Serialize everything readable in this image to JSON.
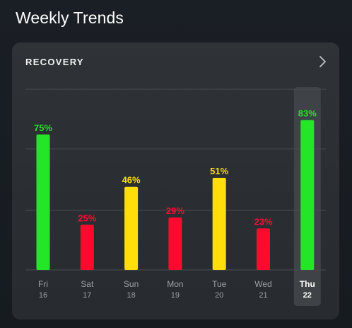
{
  "page": {
    "title": "Weekly Trends"
  },
  "card": {
    "title": "RECOVERY",
    "chevron_icon": "chevron-right-icon"
  },
  "colors": {
    "green": "#22e626",
    "yellow": "#ffde0a",
    "red": "#ff0a2e",
    "selected_background": "#3f4347",
    "grid": "#4a4e52"
  },
  "chart_data": {
    "type": "bar",
    "categories": [
      "Fri",
      "Sat",
      "Sun",
      "Mon",
      "Tue",
      "Wed",
      "Thu"
    ],
    "dates": [
      "16",
      "17",
      "18",
      "19",
      "20",
      "21",
      "22"
    ],
    "values": [
      75,
      25,
      46,
      29,
      51,
      23,
      83
    ],
    "value_labels": [
      "75%",
      "25%",
      "46%",
      "29%",
      "51%",
      "23%",
      "83%"
    ],
    "bar_colors": [
      "green",
      "red",
      "yellow",
      "red",
      "yellow",
      "red",
      "green"
    ],
    "selected_index": 6,
    "ylim": [
      0,
      100
    ],
    "grid_values": [
      33,
      67,
      100
    ],
    "grid": true,
    "title": "",
    "xlabel": "",
    "ylabel": ""
  }
}
